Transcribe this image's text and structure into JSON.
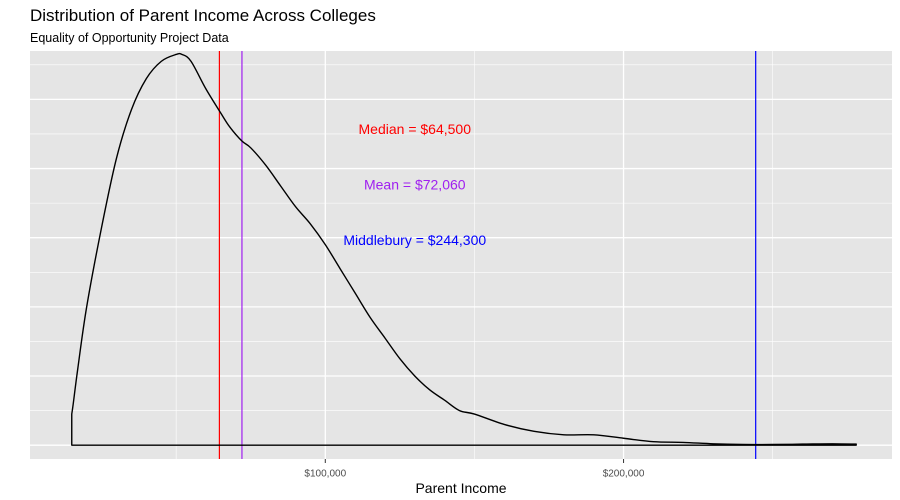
{
  "chart_data": {
    "type": "area",
    "title": "Distribution of Parent Income Across Colleges",
    "subtitle": "Equality of Opportunity Project Data",
    "xlabel": "Parent Income",
    "ylabel": "",
    "xlim": [
      1000,
      290000
    ],
    "ylim": [
      -4e-07,
      1.14e-05
    ],
    "x_ticks": [
      100000,
      200000
    ],
    "x_tick_labels": [
      "$100,000",
      "$200,000"
    ],
    "y_major_grid": [
      0,
      2e-06,
      4e-06,
      6e-06,
      8e-06,
      1e-05
    ],
    "grid": true,
    "density_curve": {
      "x": [
        15000,
        15500,
        17000,
        20000,
        25000,
        30000,
        35000,
        40000,
        45000,
        50000,
        52000,
        55000,
        60000,
        65000,
        68000,
        72000,
        75000,
        80000,
        85000,
        90000,
        95000,
        100000,
        105000,
        110000,
        115000,
        120000,
        125000,
        130000,
        135000,
        140000,
        145000,
        150000,
        160000,
        170000,
        180000,
        190000,
        200000,
        210000,
        220000,
        230000,
        240000,
        250000,
        260000,
        270000,
        278000
      ],
      "y": [
        9e-07,
        1.2e-06,
        2.2e-06,
        4e-06,
        6.3e-06,
        8.3e-06,
        9.7e-06,
        1.06e-05,
        1.11e-05,
        1.13e-05,
        1.13e-05,
        1.11e-05,
        1.03e-05,
        9.6e-06,
        9.2e-06,
        8.8e-06,
        8.6e-06,
        8.1e-06,
        7.5e-06,
        6.9e-06,
        6.4e-06,
        5.8e-06,
        5.1e-06,
        4.4e-06,
        3.7e-06,
        3.1e-06,
        2.5e-06,
        2e-06,
        1.6e-06,
        1.3e-06,
        1e-06,
        9e-07,
        6e-07,
        4e-07,
        3e-07,
        3e-07,
        2e-07,
        1e-07,
        8e-08,
        4e-08,
        2e-08,
        2e-08,
        3e-08,
        4e-08,
        3e-08
      ],
      "color": "#000000"
    },
    "vlines": [
      {
        "x": 64500,
        "color": "#ff0000"
      },
      {
        "x": 72060,
        "color": "#a020f0"
      },
      {
        "x": 244300,
        "color": "#0000ff"
      }
    ],
    "annotations": [
      {
        "text": "Median = $64,500",
        "x": 130000,
        "y": 9.1e-06,
        "color": "#ff0000"
      },
      {
        "text": "Mean = $72,060",
        "x": 130000,
        "y": 7.5e-06,
        "color": "#a020f0"
      },
      {
        "text": "Middlebury = $244,300",
        "x": 130000,
        "y": 5.9e-06,
        "color": "#0000ff"
      }
    ],
    "panel_color": "#e5e5e5",
    "grid_color": "#ffffff"
  }
}
